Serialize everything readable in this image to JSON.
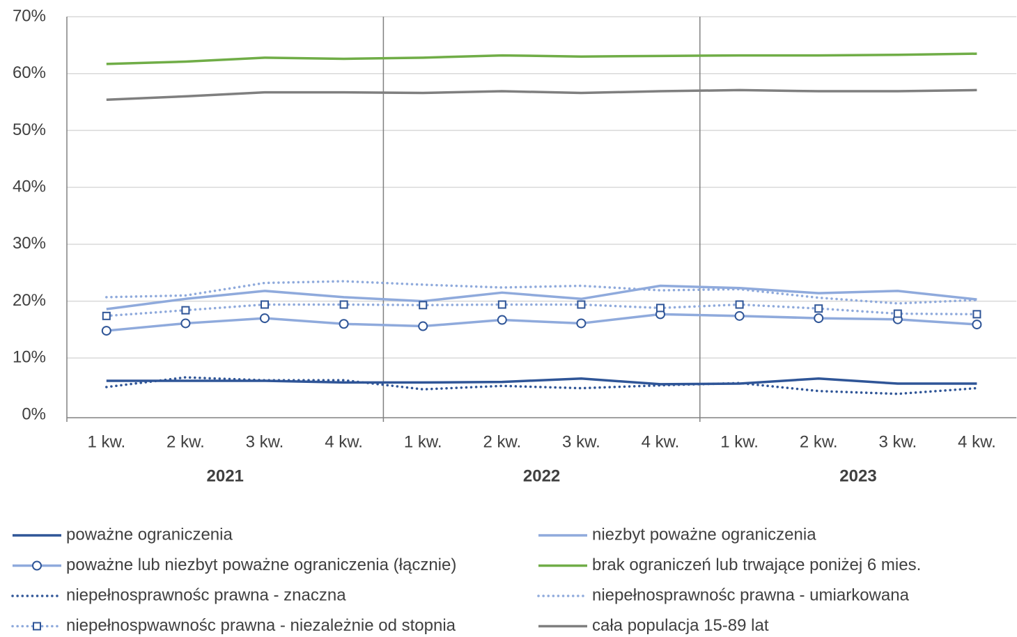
{
  "chart_data": {
    "type": "line",
    "categories": [
      "1 kw.",
      "2 kw.",
      "3 kw.",
      "4 kw.",
      "1 kw.",
      "2 kw.",
      "3 kw.",
      "4 kw.",
      "1 kw.",
      "2 kw.",
      "3 kw.",
      "4 kw."
    ],
    "category_groups": [
      {
        "label": "2021",
        "size": 4
      },
      {
        "label": "2022",
        "size": 4
      },
      {
        "label": "2023",
        "size": 4
      }
    ],
    "ylim": [
      0,
      70
    ],
    "yticks": [
      {
        "value": 0,
        "label": "0%"
      },
      {
        "value": 10,
        "label": "10%"
      },
      {
        "value": 20,
        "label": "20%"
      },
      {
        "value": 30,
        "label": "30%"
      },
      {
        "value": 40,
        "label": "40%"
      },
      {
        "value": 50,
        "label": "50%"
      },
      {
        "value": 60,
        "label": "60%"
      },
      {
        "value": 70,
        "label": "70%"
      }
    ],
    "grid": true,
    "legend": "bottom",
    "series": [
      {
        "name": "poważne ograniczenia",
        "color": "#2f5597",
        "dash": "solid",
        "values": [
          6.0,
          6.0,
          6.0,
          5.7,
          5.7,
          5.8,
          6.4,
          5.4,
          5.5,
          6.4,
          5.5,
          5.5
        ]
      },
      {
        "name": "niezbyt poważne ograniczenia",
        "color": "#8faadc",
        "dash": "solid",
        "values": [
          18.6,
          20.4,
          21.8,
          20.7,
          20.0,
          21.5,
          20.4,
          22.7,
          22.3,
          21.4,
          21.8,
          20.3
        ]
      },
      {
        "name": "poważne lub niezbyt poważne ograniczenia (łącznie)",
        "color": "#8faadc",
        "dash": "solid",
        "marker": "circle",
        "marker_color": "#2f5597",
        "values": [
          14.8,
          16.1,
          17.0,
          16.0,
          15.6,
          16.7,
          16.1,
          17.7,
          17.4,
          17.0,
          16.8,
          15.9
        ]
      },
      {
        "name": "brak ograniczeń lub trwające poniżej 6 mies.",
        "color": "#70ad47",
        "dash": "solid",
        "values": [
          61.7,
          62.1,
          62.8,
          62.6,
          62.8,
          63.2,
          63.0,
          63.1,
          63.2,
          63.2,
          63.3,
          63.5
        ]
      },
      {
        "name": "niepełnosprawnośc prawna - znaczna",
        "color": "#2f5597",
        "dash": "dotted",
        "values": [
          4.9,
          6.6,
          6.1,
          6.1,
          4.5,
          5.1,
          4.7,
          5.2,
          5.6,
          4.2,
          3.7,
          4.7
        ]
      },
      {
        "name": "niepełnosprawnośc prawna - umiarkowana",
        "color": "#8faadc",
        "dash": "dotted",
        "values": [
          20.7,
          21.0,
          23.2,
          23.5,
          22.9,
          22.4,
          22.7,
          21.9,
          22.1,
          20.6,
          19.6,
          20.2
        ]
      },
      {
        "name": "niepełnospwawnośc prawna - niezależnie od stopnia",
        "color": "#8faadc",
        "dash": "dotted",
        "marker": "square",
        "marker_color": "#2f5597",
        "values": [
          17.4,
          18.4,
          19.4,
          19.4,
          19.3,
          19.4,
          19.4,
          18.8,
          19.4,
          18.7,
          17.8,
          17.7
        ]
      },
      {
        "name": "cała populacja 15-89 lat",
        "color": "#7f7f7f",
        "dash": "solid",
        "values": [
          55.4,
          56.0,
          56.7,
          56.7,
          56.6,
          56.9,
          56.6,
          56.9,
          57.1,
          56.9,
          56.9,
          57.1
        ]
      }
    ]
  }
}
